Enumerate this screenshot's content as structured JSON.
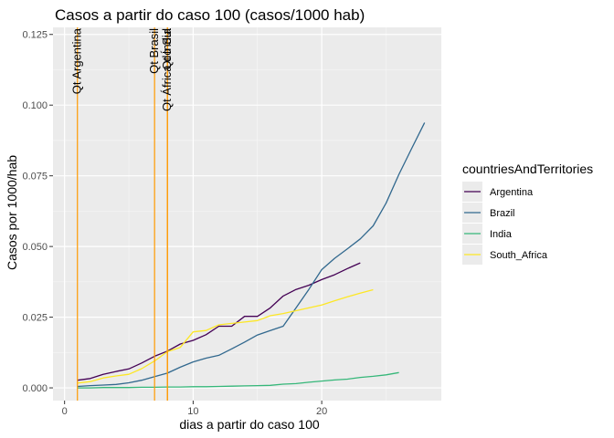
{
  "chart_data": {
    "type": "line",
    "title": "Casos a partir do caso 100 (casos/1000 hab)",
    "xlabel": "dias a partir do caso 100",
    "ylabel": "Casos por 1000/hab",
    "xlim": [
      -0.9,
      29.3
    ],
    "ylim": [
      -0.0045,
      0.1275
    ],
    "x_ticks": [
      0,
      10,
      20
    ],
    "y_ticks": [
      0.0,
      0.025,
      0.05,
      0.075,
      0.1,
      0.125
    ],
    "y_tick_labels": [
      "0.000",
      "0.025",
      "0.050",
      "0.075",
      "0.100",
      "0.125"
    ],
    "grid": true,
    "legend_title": "countriesAndTerritories",
    "legend_position": "right",
    "series": [
      {
        "name": "Argentina",
        "color": "#440154",
        "x": [
          1,
          2,
          3,
          4,
          5,
          6,
          7,
          8,
          9,
          10,
          11,
          12,
          13,
          14,
          15,
          16,
          17,
          18,
          19,
          20,
          21,
          22,
          23
        ],
        "values": [
          0.0027,
          0.0033,
          0.0048,
          0.0058,
          0.0067,
          0.0088,
          0.0112,
          0.013,
          0.0155,
          0.0168,
          0.0188,
          0.0218,
          0.0218,
          0.0253,
          0.0253,
          0.0283,
          0.0325,
          0.0348,
          0.0363,
          0.0383,
          0.04,
          0.0422,
          0.0442
        ]
      },
      {
        "name": "Brazil",
        "color": "#31688e",
        "x": [
          1,
          2,
          3,
          4,
          5,
          6,
          7,
          8,
          9,
          10,
          11,
          12,
          13,
          14,
          15,
          16,
          17,
          18,
          19,
          20,
          21,
          22,
          23,
          24,
          25,
          26,
          27,
          28
        ],
        "values": [
          0.0005,
          0.0008,
          0.001,
          0.0012,
          0.0018,
          0.0027,
          0.004,
          0.0052,
          0.0073,
          0.0092,
          0.0105,
          0.0115,
          0.0138,
          0.0162,
          0.0187,
          0.0203,
          0.0218,
          0.0283,
          0.0348,
          0.0418,
          0.0458,
          0.0492,
          0.0527,
          0.0573,
          0.0653,
          0.0755,
          0.0847,
          0.0938
        ]
      },
      {
        "name": "India",
        "color": "#35b779",
        "x": [
          1,
          2,
          3,
          4,
          5,
          6,
          7,
          8,
          9,
          10,
          11,
          12,
          13,
          14,
          15,
          16,
          17,
          18,
          19,
          20,
          21,
          22,
          23,
          24,
          25,
          26
        ],
        "values": [
          0.0,
          0.0,
          0.0001,
          0.0001,
          0.0001,
          0.0002,
          0.0002,
          0.0003,
          0.0003,
          0.0004,
          0.0004,
          0.0005,
          0.0006,
          0.0007,
          0.0008,
          0.0009,
          0.0013,
          0.0015,
          0.002,
          0.0024,
          0.0028,
          0.0031,
          0.0037,
          0.0041,
          0.0046,
          0.0054
        ]
      },
      {
        "name": "South_Africa",
        "color": "#fde725",
        "x": [
          1,
          2,
          3,
          4,
          5,
          6,
          7,
          8,
          9,
          10,
          11,
          12,
          13,
          14,
          15,
          16,
          17,
          18,
          19,
          20,
          21,
          22,
          23,
          24
        ],
        "values": [
          0.0017,
          0.0022,
          0.0035,
          0.0042,
          0.0048,
          0.0068,
          0.0095,
          0.0128,
          0.0143,
          0.0198,
          0.0203,
          0.0223,
          0.0228,
          0.0233,
          0.0238,
          0.0255,
          0.0263,
          0.0273,
          0.0283,
          0.0293,
          0.0308,
          0.0322,
          0.0335,
          0.0347
        ]
      }
    ],
    "vlines": [
      {
        "x": 1,
        "label": "Qt Argentina",
        "color": "#ff9900"
      },
      {
        "x": 7,
        "label": "Qt Brasil",
        "color": "#ff9900"
      },
      {
        "x": 8,
        "label": "Qt África do Sul",
        "color": "#ff9900"
      },
      {
        "x": 8,
        "label": "Qt Índia",
        "color": "#ff9900"
      }
    ]
  }
}
